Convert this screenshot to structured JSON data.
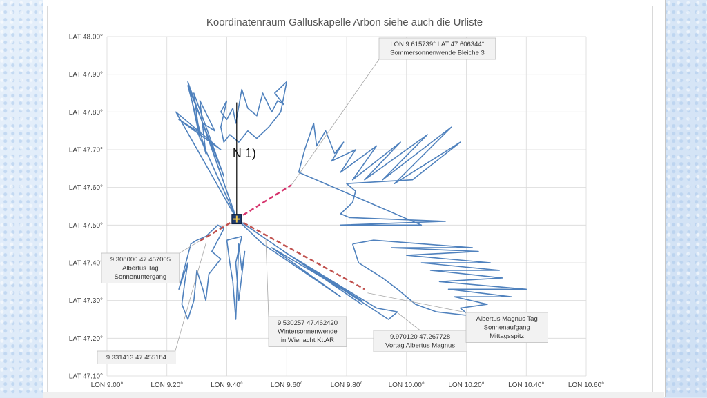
{
  "chart_data": {
    "type": "line",
    "title": "Koordinatenraum Galluskapelle Arbon siehe auch die Urliste",
    "x_ticks": [
      "LON 9.00°",
      "LON 9.20°",
      "LON 9.40°",
      "LON 9.60°",
      "LON 9.80°",
      "LON 10.00°",
      "LON 10.20°",
      "LON 10.40°",
      "LON 10.60°"
    ],
    "y_ticks": [
      "LAT 47.10°",
      "LAT 47.20°",
      "LAT 47.30°",
      "LAT 47.40°",
      "LAT 47.50°",
      "LAT 47.60°",
      "LAT 47.70°",
      "LAT 47.80°",
      "LAT 47.90°",
      "LAT 48.00°"
    ],
    "xlim": [
      9.0,
      10.6
    ],
    "ylim": [
      47.1,
      48.0
    ],
    "grid": true,
    "legend": "none",
    "center_label": "N 1)",
    "center": {
      "lon": 9.433,
      "lat": 47.516
    },
    "north_line": {
      "from": [
        9.433,
        47.516
      ],
      "to": [
        9.433,
        47.825
      ]
    },
    "dashed_lines": [
      {
        "from": [
          9.433,
          47.516
        ],
        "to": [
          9.615739,
          47.606344
        ],
        "color": "#d6336c"
      },
      {
        "from": [
          9.433,
          47.516
        ],
        "to": [
          9.308,
          47.457005
        ],
        "color": "#c0504d"
      },
      {
        "from": [
          9.433,
          47.516
        ],
        "to": [
          9.86,
          47.33
        ],
        "color": "#c0504d"
      }
    ],
    "annotations": [
      {
        "lines": [
          "LON 9.615739° LAT 47.606344°",
          "Sommersonnenwende Bleiche 3"
        ],
        "point": [
          9.615739,
          47.606344
        ]
      },
      {
        "lines": [
          "9.308000 47.457005",
          "Albertus Tag",
          "Sonnenuntergang"
        ],
        "point": [
          9.308,
          47.457005
        ]
      },
      {
        "lines": [
          "9.331413 47.455184"
        ],
        "point": [
          9.331413,
          47.455184
        ]
      },
      {
        "lines": [
          "9.530257 47.462420",
          "Wintersonnenwende",
          "in Wienacht Kt.AR"
        ],
        "point": [
          9.530257,
          47.46242
        ]
      },
      {
        "lines": [
          "9.970120 47.267728",
          "Vortag Albertus Magnus"
        ],
        "point": [
          9.97012,
          47.267728
        ]
      },
      {
        "lines": [
          "Albertus Magnus Tag",
          "Sonnenaufgang",
          "Mittagsspitz"
        ],
        "point": [
          9.87,
          47.32
        ]
      }
    ],
    "series": [
      {
        "values": [
          [
            9.433,
            47.516
          ],
          [
            9.27,
            47.88
          ],
          [
            9.31,
            47.73
          ],
          [
            9.29,
            47.85
          ],
          [
            9.39,
            47.63
          ],
          [
            9.27,
            47.87
          ],
          [
            9.33,
            47.69
          ],
          [
            9.31,
            47.83
          ],
          [
            9.36,
            47.75
          ],
          [
            9.32,
            47.77
          ],
          [
            9.433,
            47.516
          ]
        ]
      },
      {
        "values": [
          [
            9.433,
            47.516
          ],
          [
            9.23,
            47.8
          ],
          [
            9.38,
            47.7
          ],
          [
            9.24,
            47.78
          ],
          [
            9.3,
            47.75
          ],
          [
            9.433,
            47.516
          ]
        ]
      },
      {
        "values": [
          [
            9.4,
            47.83
          ],
          [
            9.38,
            47.8
          ],
          [
            9.4,
            47.78
          ],
          [
            9.42,
            47.81
          ],
          [
            9.43,
            47.77
          ],
          [
            9.45,
            47.86
          ],
          [
            9.47,
            47.81
          ],
          [
            9.5,
            47.79
          ],
          [
            9.52,
            47.85
          ],
          [
            9.55,
            47.8
          ],
          [
            9.57,
            47.83
          ],
          [
            9.59,
            47.82
          ],
          [
            9.56,
            47.85
          ],
          [
            9.6,
            47.88
          ],
          [
            9.58,
            47.8
          ],
          [
            9.54,
            47.76
          ],
          [
            9.5,
            47.73
          ],
          [
            9.47,
            47.75
          ],
          [
            9.44,
            47.72
          ],
          [
            9.41,
            47.74
          ],
          [
            9.39,
            47.72
          ],
          [
            9.38,
            47.76
          ],
          [
            9.4,
            47.83
          ]
        ]
      },
      {
        "values": [
          [
            9.64,
            47.64
          ],
          [
            9.66,
            47.7
          ],
          [
            9.69,
            47.77
          ],
          [
            9.7,
            47.71
          ],
          [
            9.73,
            47.75
          ],
          [
            9.76,
            47.69
          ],
          [
            9.79,
            47.72
          ],
          [
            9.75,
            47.67
          ],
          [
            9.83,
            47.7
          ],
          [
            9.78,
            47.64
          ],
          [
            9.9,
            47.71
          ],
          [
            9.82,
            47.62
          ],
          [
            9.98,
            47.72
          ],
          [
            9.86,
            47.62
          ],
          [
            10.07,
            47.74
          ],
          [
            9.92,
            47.62
          ],
          [
            10.15,
            47.76
          ],
          [
            9.96,
            47.61
          ],
          [
            10.18,
            47.72
          ],
          [
            10.02,
            47.62
          ],
          [
            9.8,
            47.61
          ],
          [
            9.83,
            47.59
          ],
          [
            9.82,
            47.56
          ],
          [
            9.78,
            47.53
          ],
          [
            9.81,
            47.52
          ],
          [
            10.13,
            47.51
          ],
          [
            9.78,
            47.5
          ],
          [
            10.05,
            47.5
          ],
          [
            9.64,
            47.64
          ]
        ]
      },
      {
        "values": [
          [
            9.82,
            47.45
          ],
          [
            9.89,
            47.46
          ],
          [
            10.22,
            47.44
          ],
          [
            9.95,
            47.44
          ],
          [
            10.24,
            47.43
          ],
          [
            10.0,
            47.42
          ],
          [
            10.28,
            47.4
          ],
          [
            10.05,
            47.4
          ],
          [
            10.31,
            47.38
          ],
          [
            10.08,
            47.38
          ],
          [
            10.32,
            47.36
          ],
          [
            10.11,
            47.35
          ],
          [
            10.4,
            47.33
          ],
          [
            10.14,
            47.33
          ],
          [
            10.35,
            47.31
          ],
          [
            10.16,
            47.31
          ],
          [
            10.27,
            47.29
          ],
          [
            10.18,
            47.28
          ],
          [
            10.21,
            47.26
          ],
          [
            10.1,
            47.27
          ],
          [
            10.03,
            47.29
          ],
          [
            10.0,
            47.31
          ],
          [
            9.97,
            47.33
          ],
          [
            9.92,
            47.36
          ],
          [
            9.88,
            47.38
          ],
          [
            9.84,
            47.4
          ],
          [
            9.82,
            47.45
          ]
        ]
      },
      {
        "values": [
          [
            9.433,
            47.516
          ],
          [
            9.52,
            47.45
          ],
          [
            9.78,
            47.31
          ],
          [
            9.55,
            47.44
          ],
          [
            9.85,
            47.3
          ],
          [
            9.59,
            47.43
          ],
          [
            9.9,
            47.28
          ],
          [
            9.97,
            47.27
          ],
          [
            9.94,
            47.25
          ],
          [
            9.65,
            47.4
          ],
          [
            9.85,
            47.29
          ],
          [
            9.433,
            47.516
          ]
        ]
      },
      {
        "values": [
          [
            9.3,
            47.46
          ],
          [
            9.33,
            47.47
          ],
          [
            9.37,
            47.5
          ],
          [
            9.39,
            47.49
          ],
          [
            9.35,
            47.43
          ],
          [
            9.38,
            47.41
          ],
          [
            9.34,
            47.37
          ],
          [
            9.33,
            47.3
          ],
          [
            9.32,
            47.33
          ],
          [
            9.3,
            47.38
          ],
          [
            9.29,
            47.3
          ],
          [
            9.27,
            47.25
          ],
          [
            9.25,
            47.29
          ],
          [
            9.26,
            47.35
          ],
          [
            9.27,
            47.4
          ],
          [
            9.24,
            47.33
          ],
          [
            9.28,
            47.45
          ],
          [
            9.3,
            47.46
          ]
        ]
      },
      {
        "values": [
          [
            9.4,
            47.46
          ],
          [
            9.41,
            47.4
          ],
          [
            9.42,
            47.35
          ],
          [
            9.43,
            47.25
          ],
          [
            9.44,
            47.45
          ],
          [
            9.45,
            47.38
          ],
          [
            9.46,
            47.43
          ],
          [
            9.44,
            47.3
          ],
          [
            9.43,
            47.4
          ],
          [
            9.45,
            47.47
          ],
          [
            9.4,
            47.46
          ]
        ]
      }
    ]
  }
}
